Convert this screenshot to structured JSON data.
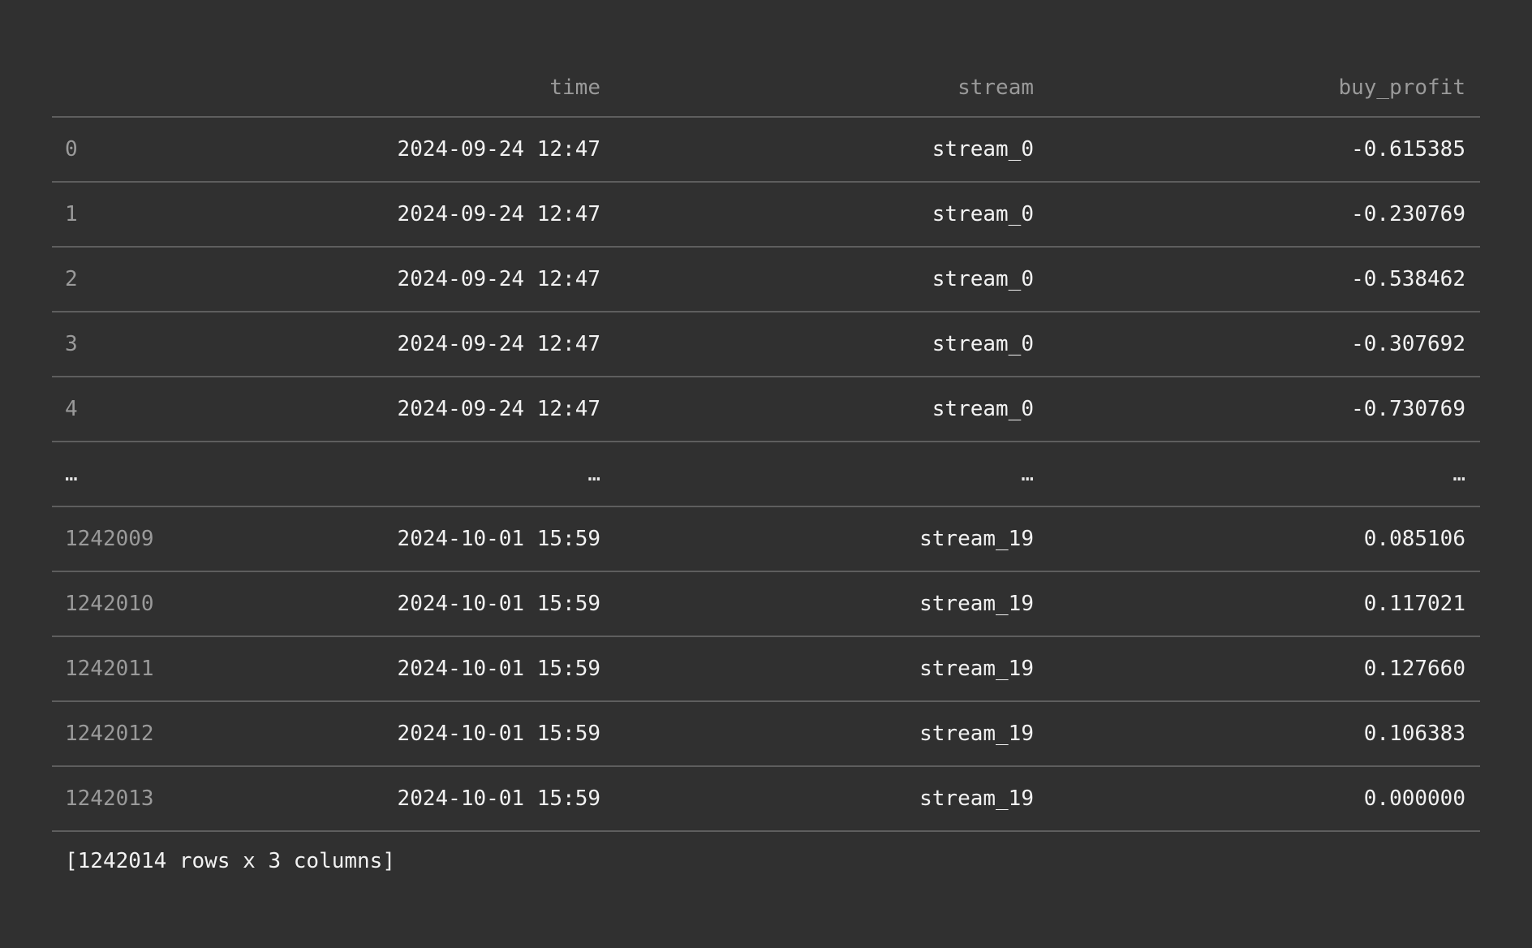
{
  "columns": {
    "index": "",
    "time": "time",
    "stream": "stream",
    "buy_profit": "buy_profit"
  },
  "rows": [
    {
      "index": "0",
      "time": "2024-09-24 12:47",
      "stream": "stream_0",
      "buy_profit": "-0.615385"
    },
    {
      "index": "1",
      "time": "2024-09-24 12:47",
      "stream": "stream_0",
      "buy_profit": "-0.230769"
    },
    {
      "index": "2",
      "time": "2024-09-24 12:47",
      "stream": "stream_0",
      "buy_profit": "-0.538462"
    },
    {
      "index": "3",
      "time": "2024-09-24 12:47",
      "stream": "stream_0",
      "buy_profit": "-0.307692"
    },
    {
      "index": "4",
      "time": "2024-09-24 12:47",
      "stream": "stream_0",
      "buy_profit": "-0.730769"
    },
    {
      "index": "...",
      "time": "...",
      "stream": "...",
      "buy_profit": "..."
    },
    {
      "index": "1242009",
      "time": "2024-10-01 15:59",
      "stream": "stream_19",
      "buy_profit": "0.085106"
    },
    {
      "index": "1242010",
      "time": "2024-10-01 15:59",
      "stream": "stream_19",
      "buy_profit": "0.117021"
    },
    {
      "index": "1242011",
      "time": "2024-10-01 15:59",
      "stream": "stream_19",
      "buy_profit": "0.127660"
    },
    {
      "index": "1242012",
      "time": "2024-10-01 15:59",
      "stream": "stream_19",
      "buy_profit": "0.106383"
    },
    {
      "index": "1242013",
      "time": "2024-10-01 15:59",
      "stream": "stream_19",
      "buy_profit": "0.000000"
    }
  ],
  "footer": "[1242014 rows x 3 columns]",
  "colors": {
    "background": "#303030",
    "divider": "#5e5e5e",
    "header_text": "#9a9a9a",
    "value_text": "#f2f2f2"
  }
}
